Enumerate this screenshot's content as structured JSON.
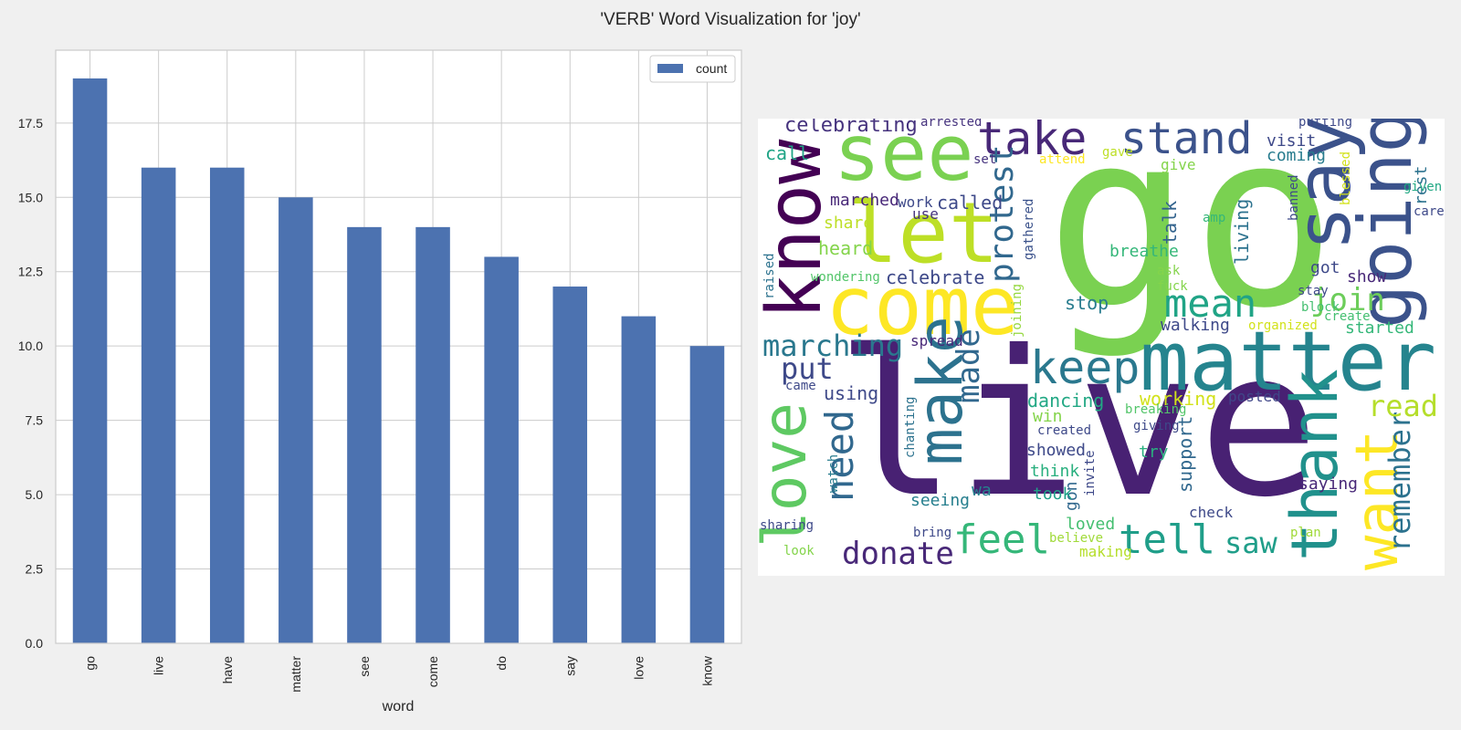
{
  "suptitle": "'VERB' Word Visualization for 'joy'",
  "chart_data": {
    "type": "bar",
    "categories": [
      "go",
      "live",
      "have",
      "matter",
      "see",
      "come",
      "do",
      "say",
      "love",
      "know"
    ],
    "series": [
      {
        "name": "count",
        "values": [
          19,
          16,
          16,
          15,
          14,
          14,
          13,
          12,
          11,
          10
        ],
        "color": "#4c72b0"
      }
    ],
    "xlabel": "word",
    "ylabel": "",
    "ylim": [
      0,
      19.95
    ],
    "yticks": [
      0.0,
      2.5,
      5.0,
      7.5,
      10.0,
      12.5,
      15.0,
      17.5
    ],
    "ytick_labels": [
      "0.0",
      "2.5",
      "5.0",
      "7.5",
      "10.0",
      "12.5",
      "15.0",
      "17.5"
    ],
    "grid": true,
    "legend": "upper right"
  },
  "wordcloud": {
    "background": "#ffffff",
    "words": [
      {
        "text": "go",
        "color": "#7ad151"
      },
      {
        "text": "live",
        "color": "#482173"
      },
      {
        "text": "matter",
        "color": "#25848e"
      },
      {
        "text": "come",
        "color": "#fde725"
      },
      {
        "text": "see",
        "color": "#7ad151"
      },
      {
        "text": "let",
        "color": "#bddf26"
      },
      {
        "text": "know",
        "color": "#440154"
      },
      {
        "text": "say",
        "color": "#3b528b"
      },
      {
        "text": "going",
        "color": "#3b528b"
      },
      {
        "text": "thank",
        "color": "#21918c"
      },
      {
        "text": "make",
        "color": "#2c728e"
      },
      {
        "text": "love",
        "color": "#5ec962"
      },
      {
        "text": "want",
        "color": "#fde725"
      },
      {
        "text": "keep",
        "color": "#2a788e"
      },
      {
        "text": "take",
        "color": "#482878"
      },
      {
        "text": "stand",
        "color": "#3b528b"
      },
      {
        "text": "feel",
        "color": "#35b779"
      },
      {
        "text": "tell",
        "color": "#1f9e89"
      },
      {
        "text": "need",
        "color": "#31688e"
      },
      {
        "text": "mean",
        "color": "#20a486"
      },
      {
        "text": "protest",
        "color": "#31688e"
      },
      {
        "text": "remember",
        "color": "#2c728e"
      },
      {
        "text": "donate",
        "color": "#482878"
      },
      {
        "text": "marching",
        "color": "#2a788e"
      },
      {
        "text": "put",
        "color": "#3e4989"
      },
      {
        "text": "join",
        "color": "#6ccd5a"
      },
      {
        "text": "read",
        "color": "#b5de2b"
      },
      {
        "text": "made",
        "color": "#31688e"
      },
      {
        "text": "saw",
        "color": "#1f9e89"
      },
      {
        "text": "celebrating",
        "color": "#46337e"
      },
      {
        "text": "celebrate",
        "color": "#3e4989"
      },
      {
        "text": "dancing",
        "color": "#22a884"
      },
      {
        "text": "working",
        "color": "#d2e21b"
      },
      {
        "text": "stop",
        "color": "#287c8e"
      },
      {
        "text": "call",
        "color": "#20a486"
      },
      {
        "text": "called",
        "color": "#3e4989"
      },
      {
        "text": "marched",
        "color": "#482878"
      },
      {
        "text": "heard",
        "color": "#84d44b"
      },
      {
        "text": "share",
        "color": "#bddf26"
      },
      {
        "text": "using",
        "color": "#3e4989"
      },
      {
        "text": "talk",
        "color": "#33638d"
      },
      {
        "text": "living",
        "color": "#2c728e"
      },
      {
        "text": "breathe",
        "color": "#35b779"
      },
      {
        "text": "support",
        "color": "#31688e"
      },
      {
        "text": "walking",
        "color": "#3e4989"
      },
      {
        "text": "started",
        "color": "#35b779"
      },
      {
        "text": "loved",
        "color": "#44bf70"
      },
      {
        "text": "saying",
        "color": "#482878"
      },
      {
        "text": "showed",
        "color": "#3e4989"
      },
      {
        "text": "visit",
        "color": "#3e4989"
      },
      {
        "text": "coming",
        "color": "#287c8e"
      },
      {
        "text": "got",
        "color": "#3e4989"
      },
      {
        "text": "show",
        "color": "#482878"
      },
      {
        "text": "gon",
        "color": "#31688e"
      },
      {
        "text": "seeing",
        "color": "#277f8e"
      },
      {
        "text": "think",
        "color": "#2ab07f"
      },
      {
        "text": "took",
        "color": "#1fa188"
      },
      {
        "text": "check",
        "color": "#3e4989"
      },
      {
        "text": "posted",
        "color": "#404688"
      },
      {
        "text": "try",
        "color": "#2ab07f"
      },
      {
        "text": "spread",
        "color": "#482878"
      },
      {
        "text": "win",
        "color": "#84d44b"
      },
      {
        "text": "wa",
        "color": "#26828e"
      },
      {
        "text": "making",
        "color": "#b5de2b"
      },
      {
        "text": "use",
        "color": "#46337e"
      },
      {
        "text": "work",
        "color": "#3e4989"
      },
      {
        "text": "give",
        "color": "#84d44b"
      },
      {
        "text": "rest",
        "color": "#2c728e"
      },
      {
        "text": "gathered",
        "color": "#3b528b"
      },
      {
        "text": "joining",
        "color": "#95d840"
      },
      {
        "text": "breaking",
        "color": "#52c569"
      },
      {
        "text": "giving",
        "color": "#3e4989"
      },
      {
        "text": "created",
        "color": "#3e4989"
      },
      {
        "text": "chanting",
        "color": "#2c728e"
      },
      {
        "text": "watch",
        "color": "#287c8e"
      },
      {
        "text": "invite",
        "color": "#3e4989"
      },
      {
        "text": "sharing",
        "color": "#3e4989"
      },
      {
        "text": "bring",
        "color": "#3e4989"
      },
      {
        "text": "believe",
        "color": "#a0da39"
      },
      {
        "text": "plan",
        "color": "#a0da39"
      },
      {
        "text": "look",
        "color": "#84d44b"
      },
      {
        "text": "came",
        "color": "#3e4989"
      },
      {
        "text": "raised",
        "color": "#2c728e"
      },
      {
        "text": "wondering",
        "color": "#52c569"
      },
      {
        "text": "arrested",
        "color": "#46337e"
      },
      {
        "text": "set",
        "color": "#46337e"
      },
      {
        "text": "attend",
        "color": "#fde725"
      },
      {
        "text": "gave",
        "color": "#bddf26"
      },
      {
        "text": "putting",
        "color": "#3e4989"
      },
      {
        "text": "given",
        "color": "#22a884"
      },
      {
        "text": "blessed",
        "color": "#d2e21b"
      },
      {
        "text": "banned",
        "color": "#3e4989"
      },
      {
        "text": "care",
        "color": "#3e4989"
      },
      {
        "text": "amp",
        "color": "#35b779"
      },
      {
        "text": "stay",
        "color": "#3e4989"
      },
      {
        "text": "block",
        "color": "#44bf70"
      },
      {
        "text": "create",
        "color": "#44bf70"
      },
      {
        "text": "organized",
        "color": "#d2e21b"
      },
      {
        "text": "ask",
        "color": "#84d44b"
      },
      {
        "text": "fuck",
        "color": "#84d44b"
      }
    ]
  }
}
